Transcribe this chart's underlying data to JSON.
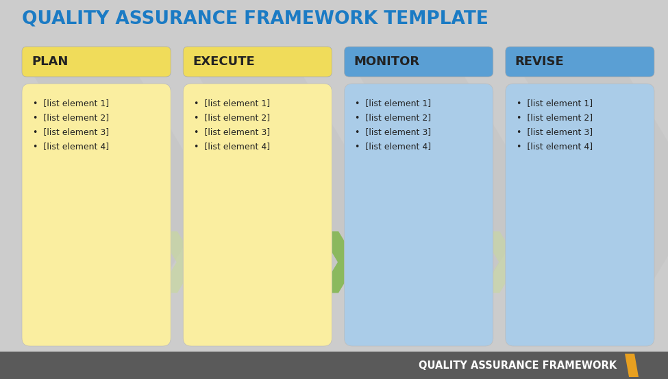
{
  "title": "QUALITY ASSURANCE FRAMEWORK TEMPLATE",
  "title_color": "#1B7BC4",
  "footer_text": "QUALITY ASSURANCE FRAMEWORK",
  "footer_bg": "#5a5a5a",
  "footer_accent": "#E8A020",
  "bg_color": "#CCCCCC",
  "columns": [
    {
      "label": "PLAN",
      "header_bg": "#F0DC5A",
      "body_bg": "#FAEEA0",
      "text_color": "#222222",
      "items": [
        "[list element 1]",
        "[list element 2]",
        "[list element 3]",
        "[list element 4]"
      ]
    },
    {
      "label": "EXECUTE",
      "header_bg": "#F0DC5A",
      "body_bg": "#FAEEA0",
      "text_color": "#222222",
      "items": [
        "[list element 1]",
        "[list element 2]",
        "[list element 3]",
        "[list element 4]"
      ]
    },
    {
      "label": "MONITOR",
      "header_bg": "#5A9FD4",
      "body_bg": "#AACCE8",
      "text_color": "#222222",
      "items": [
        "[list element 1]",
        "[list element 2]",
        "[list element 3]",
        "[list element 4]"
      ]
    },
    {
      "label": "REVISE",
      "header_bg": "#5A9FD4",
      "body_bg": "#AACCE8",
      "text_color": "#222222",
      "items": [
        "[list element 1]",
        "[list element 2]",
        "[list element 3]",
        "[list element 4]"
      ]
    }
  ],
  "figsize": [
    9.75,
    5.53
  ],
  "dpi": 100
}
